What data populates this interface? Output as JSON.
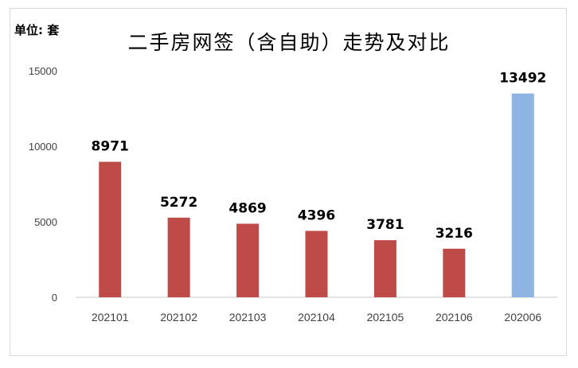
{
  "unit_label": "单位: 套",
  "title": "二手房网签（含自助）走势及对比",
  "colors": {
    "primary": "#bf4b49",
    "highlight": "#8eb4e3",
    "axis": "#c8c8c8"
  },
  "chart_data": {
    "type": "bar",
    "title": "二手房网签（含自助）走势及对比",
    "unit": "单位: 套",
    "categories": [
      "202101",
      "202102",
      "202103",
      "202104",
      "202105",
      "202106",
      "202006"
    ],
    "values": [
      8971,
      5272,
      4869,
      4396,
      3781,
      3216,
      13492
    ],
    "data_labels": [
      "8971",
      "5272",
      "4869",
      "4396",
      "3781",
      "3216",
      "13492"
    ],
    "yticks": [
      "0",
      "5000",
      "10000",
      "15000"
    ],
    "ylim": [
      0,
      15000
    ],
    "highlight_index": 6,
    "grid": false,
    "legend": "none"
  }
}
